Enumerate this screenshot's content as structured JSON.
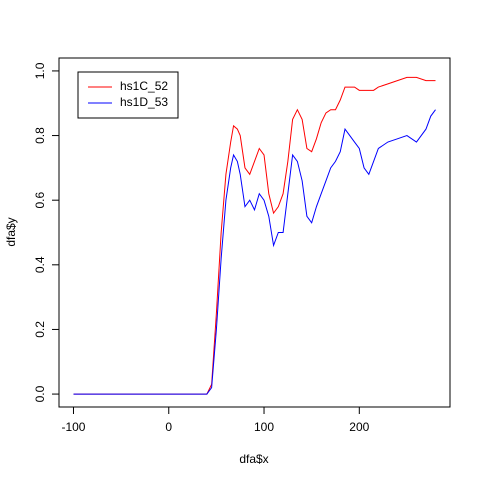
{
  "chart_data": {
    "type": "line",
    "xlabel": "dfa$x",
    "ylabel": "dfa$y",
    "x": [
      -100,
      0,
      40,
      45,
      50,
      55,
      60,
      65,
      68,
      72,
      75,
      80,
      85,
      90,
      95,
      100,
      105,
      110,
      115,
      120,
      125,
      130,
      135,
      140,
      145,
      150,
      155,
      160,
      165,
      170,
      175,
      180,
      185,
      190,
      195,
      200,
      205,
      210,
      215,
      220,
      230,
      240,
      250,
      260,
      270,
      275,
      280
    ],
    "series": [
      {
        "name": "hs1C_52",
        "color": "#ff0000",
        "values": [
          0,
          0,
          0,
          0.03,
          0.25,
          0.5,
          0.68,
          0.78,
          0.83,
          0.82,
          0.8,
          0.7,
          0.68,
          0.72,
          0.76,
          0.74,
          0.62,
          0.56,
          0.58,
          0.62,
          0.72,
          0.85,
          0.88,
          0.85,
          0.76,
          0.75,
          0.79,
          0.84,
          0.87,
          0.88,
          0.88,
          0.91,
          0.95,
          0.95,
          0.95,
          0.94,
          0.94,
          0.94,
          0.94,
          0.95,
          0.96,
          0.97,
          0.98,
          0.98,
          0.97,
          0.97,
          0.97
        ]
      },
      {
        "name": "hs1D_53",
        "color": "#0000ff",
        "values": [
          0,
          0,
          0,
          0.02,
          0.2,
          0.42,
          0.6,
          0.7,
          0.74,
          0.72,
          0.68,
          0.58,
          0.6,
          0.57,
          0.62,
          0.6,
          0.55,
          0.46,
          0.5,
          0.5,
          0.62,
          0.74,
          0.72,
          0.66,
          0.55,
          0.53,
          0.58,
          0.62,
          0.66,
          0.7,
          0.72,
          0.75,
          0.82,
          0.8,
          0.78,
          0.76,
          0.7,
          0.68,
          0.72,
          0.76,
          0.78,
          0.79,
          0.8,
          0.78,
          0.82,
          0.86,
          0.88
        ]
      }
    ],
    "xlim": [
      -115.2,
      295.2
    ],
    "xticks": [
      -100,
      0,
      100,
      200
    ],
    "ylim": [
      -0.04,
      1.04
    ],
    "yticks": [
      {
        "value": 0,
        "label": "0.0"
      },
      0.2,
      0.4,
      0.6,
      0.8,
      {
        "value": 1,
        "label": "1.0"
      }
    ],
    "legend": "topleft"
  }
}
